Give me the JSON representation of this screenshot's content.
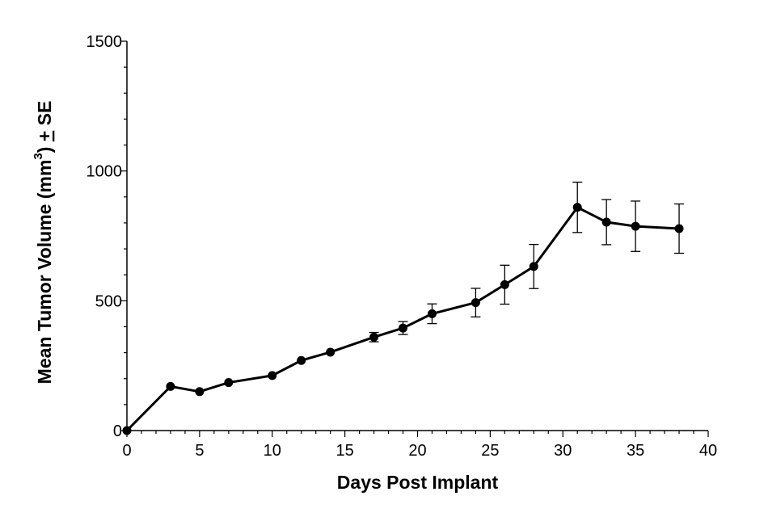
{
  "chart_data": {
    "type": "line",
    "xlabel": "Days Post Implant",
    "ylabel": {
      "prefix": "Mean Tumor Volume (mm",
      "superscript": "3",
      "middle": ") ",
      "pm": "+",
      "suffix": " SE"
    },
    "xlim": [
      0,
      40
    ],
    "ylim": [
      0,
      1500
    ],
    "x_ticks": [
      0,
      5,
      10,
      15,
      20,
      25,
      30,
      35,
      40
    ],
    "x_tick_labels": [
      "0",
      "5",
      "10",
      "15",
      "20",
      "25",
      "30",
      "35",
      "40"
    ],
    "y_ticks": [
      0,
      500,
      1000,
      1500
    ],
    "y_tick_labels": [
      "0",
      "500",
      "1000",
      "1500"
    ],
    "grid": false,
    "legend": "none",
    "series": [
      {
        "color": "#000000",
        "points": [
          {
            "x": 0,
            "y": 0,
            "err": 0
          },
          {
            "x": 3,
            "y": 170,
            "err": 0
          },
          {
            "x": 5,
            "y": 150,
            "err": 0
          },
          {
            "x": 7,
            "y": 185,
            "err": 0
          },
          {
            "x": 10,
            "y": 212,
            "err": 0
          },
          {
            "x": 12,
            "y": 270,
            "err": 0
          },
          {
            "x": 14,
            "y": 302,
            "err": 0
          },
          {
            "x": 17,
            "y": 360,
            "err": 18
          },
          {
            "x": 19,
            "y": 395,
            "err": 25
          },
          {
            "x": 21,
            "y": 450,
            "err": 38
          },
          {
            "x": 24,
            "y": 493,
            "err": 55
          },
          {
            "x": 26,
            "y": 562,
            "err": 75
          },
          {
            "x": 28,
            "y": 632,
            "err": 85
          },
          {
            "x": 31,
            "y": 860,
            "err": 97
          },
          {
            "x": 33,
            "y": 803,
            "err": 87
          },
          {
            "x": 35,
            "y": 787,
            "err": 97
          },
          {
            "x": 38,
            "y": 778,
            "err": 95
          }
        ]
      }
    ]
  }
}
